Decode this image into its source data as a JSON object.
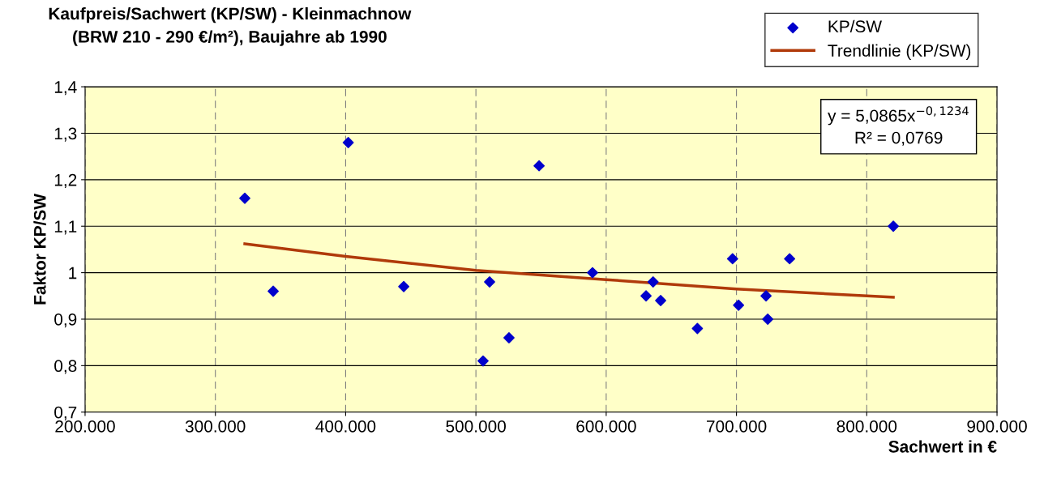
{
  "chart_data": {
    "type": "scatter",
    "title": "Kaufpreis/Sachwert (KP/SW) - Kleinmachnow\n(BRW 210 - 290 €/m²), Baujahre ab 1990",
    "xlabel": "Sachwert in €",
    "ylabel": "Faktor KP/SW",
    "series": [
      {
        "name": "KP/SW",
        "color": "#0000cc",
        "marker": "diamond",
        "x": [
          322600,
          344400,
          402000,
          444600,
          510500,
          505500,
          525400,
          548500,
          589500,
          630600,
          636000,
          641800,
          670000,
          697000,
          701600,
          722700,
          724000,
          740800,
          820400
        ],
        "values": [
          1.16,
          0.96,
          1.28,
          0.97,
          0.98,
          0.81,
          0.86,
          1.23,
          1.0,
          0.95,
          0.98,
          0.94,
          0.88,
          1.03,
          0.93,
          0.95,
          0.9,
          1.03,
          1.1
        ]
      },
      {
        "name": "Trendlinie (KP/SW)",
        "type": "line",
        "color": "#b03a0a",
        "marker": "none",
        "line_style": "solid",
        "x": [
          322600,
          400000,
          500000,
          600000,
          700000,
          820400
        ],
        "values": [
          1.062,
          1.035,
          1.005,
          0.985,
          0.965,
          0.947
        ]
      }
    ],
    "xlim": [
      200000,
      900000
    ],
    "ylim": [
      0.7,
      1.4
    ],
    "xticks": [
      {
        "value": 200000,
        "label": "200.000"
      },
      {
        "value": 300000,
        "label": "300.000"
      },
      {
        "value": 400000,
        "label": "400.000"
      },
      {
        "value": 500000,
        "label": "500.000"
      },
      {
        "value": 600000,
        "label": "600.000"
      },
      {
        "value": 700000,
        "label": "700.000"
      },
      {
        "value": 800000,
        "label": "800.000"
      },
      {
        "value": 900000,
        "label": "900.000"
      }
    ],
    "yticks": [
      {
        "value": 0.7,
        "label": "0,7"
      },
      {
        "value": 0.8,
        "label": "0,8"
      },
      {
        "value": 0.9,
        "label": "0,9"
      },
      {
        "value": 1.0,
        "label": "1"
      },
      {
        "value": 1.1,
        "label": "1,1"
      },
      {
        "value": 1.2,
        "label": "1,2"
      },
      {
        "value": 1.3,
        "label": "1,3"
      },
      {
        "value": 1.4,
        "label": "1,4"
      }
    ],
    "grid": true,
    "legend": "top right",
    "annotations": [
      "y = 5,0865x$^{−0,1234}$\nR² = 0,0769"
    ]
  }
}
